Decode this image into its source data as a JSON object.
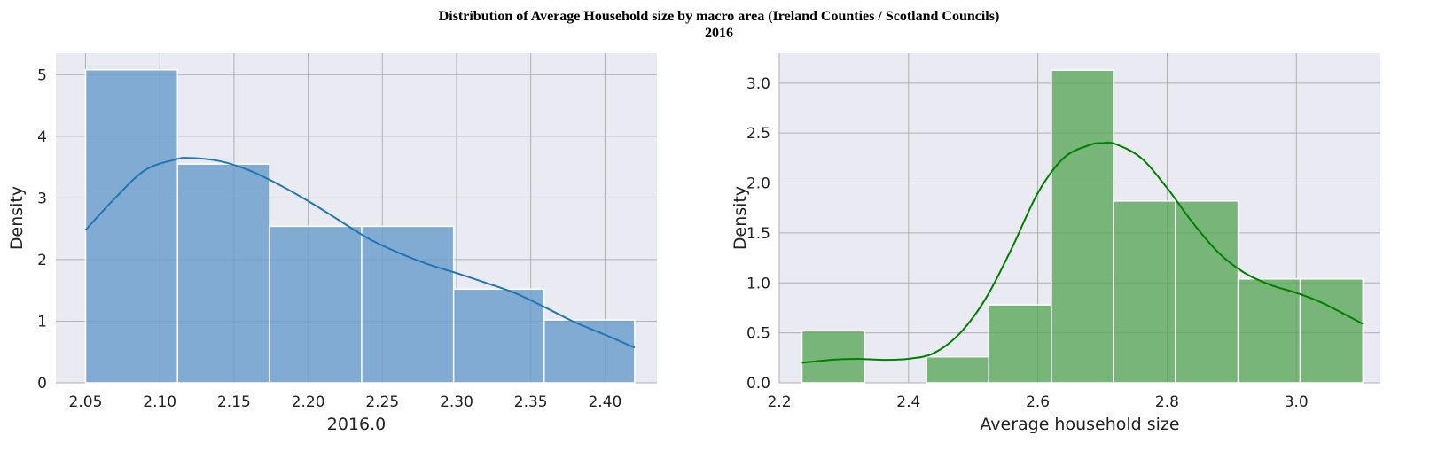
{
  "title_line1": "Distribution of Average Household size by macro area (Ireland Counties / Scotland Councils)",
  "title_line2": "2016",
  "colors": {
    "background": "#eaeaf2",
    "grid": "#b0b0b0",
    "left_bar": "#6fa0cc",
    "left_line": "#1f77b4",
    "right_bar": "#5aa85a",
    "right_line": "#008000"
  },
  "chart_data": [
    {
      "type": "bar",
      "subtype": "histogram-with-kde",
      "xlabel": "2016.0",
      "ylabel": "Density",
      "xlim": [
        2.03,
        2.435
      ],
      "ylim": [
        0,
        5.35
      ],
      "xticks": [
        2.05,
        2.1,
        2.15,
        2.2,
        2.25,
        2.3,
        2.35,
        2.4
      ],
      "xtick_labels": [
        "2.05",
        "2.10",
        "2.15",
        "2.20",
        "2.25",
        "2.30",
        "2.35",
        "2.40"
      ],
      "yticks": [
        0,
        1,
        2,
        3,
        4,
        5
      ],
      "ytick_labels": [
        "0",
        "1",
        "2",
        "3",
        "4",
        "5"
      ],
      "grid": true,
      "bins": [
        {
          "x0": 2.05,
          "x1": 2.112,
          "density": 5.08
        },
        {
          "x0": 2.112,
          "x1": 2.174,
          "density": 3.55
        },
        {
          "x0": 2.174,
          "x1": 2.236,
          "density": 2.54
        },
        {
          "x0": 2.236,
          "x1": 2.298,
          "density": 2.54
        },
        {
          "x0": 2.298,
          "x1": 2.359,
          "density": 1.52
        },
        {
          "x0": 2.359,
          "x1": 2.42,
          "density": 1.02
        }
      ],
      "kde": {
        "x": [
          2.05,
          2.07,
          2.09,
          2.11,
          2.12,
          2.14,
          2.16,
          2.18,
          2.2,
          2.22,
          2.24,
          2.26,
          2.28,
          2.3,
          2.32,
          2.34,
          2.36,
          2.38,
          2.4,
          2.42
        ],
        "y": [
          2.48,
          3.0,
          3.45,
          3.62,
          3.65,
          3.6,
          3.45,
          3.22,
          2.95,
          2.65,
          2.35,
          2.12,
          1.93,
          1.78,
          1.62,
          1.45,
          1.22,
          0.98,
          0.78,
          0.57
        ]
      }
    },
    {
      "type": "bar",
      "subtype": "histogram-with-kde",
      "xlabel": "Average household size",
      "ylabel": "Density",
      "xlim": [
        2.2,
        3.13
      ],
      "ylim": [
        0,
        3.3
      ],
      "xticks": [
        2.2,
        2.4,
        2.6,
        2.8,
        3.0
      ],
      "xtick_labels": [
        "2.2",
        "2.4",
        "2.6",
        "2.8",
        "3.0"
      ],
      "yticks": [
        0.0,
        0.5,
        1.0,
        1.5,
        2.0,
        2.5,
        3.0
      ],
      "ytick_labels": [
        "0.0",
        "0.5",
        "1.0",
        "1.5",
        "2.0",
        "2.5",
        "3.0"
      ],
      "grid": true,
      "bins": [
        {
          "x0": 2.235,
          "x1": 2.332,
          "density": 0.52
        },
        {
          "x0": 2.332,
          "x1": 2.428,
          "density": 0.0
        },
        {
          "x0": 2.428,
          "x1": 2.524,
          "density": 0.26
        },
        {
          "x0": 2.524,
          "x1": 2.621,
          "density": 0.78
        },
        {
          "x0": 2.621,
          "x1": 2.717,
          "density": 3.13
        },
        {
          "x0": 2.717,
          "x1": 2.813,
          "density": 1.82
        },
        {
          "x0": 2.813,
          "x1": 2.91,
          "density": 1.82
        },
        {
          "x0": 2.91,
          "x1": 3.006,
          "density": 1.04
        },
        {
          "x0": 3.006,
          "x1": 3.103,
          "density": 1.04
        }
      ],
      "kde": {
        "x": [
          2.235,
          2.28,
          2.32,
          2.36,
          2.4,
          2.44,
          2.48,
          2.52,
          2.56,
          2.6,
          2.64,
          2.68,
          2.7,
          2.72,
          2.76,
          2.8,
          2.84,
          2.88,
          2.92,
          2.96,
          3.0,
          3.04,
          3.103
        ],
        "y": [
          0.2,
          0.23,
          0.24,
          0.23,
          0.24,
          0.3,
          0.5,
          0.85,
          1.35,
          1.9,
          2.25,
          2.38,
          2.4,
          2.39,
          2.25,
          1.95,
          1.6,
          1.3,
          1.1,
          0.98,
          0.9,
          0.8,
          0.59
        ]
      }
    }
  ]
}
